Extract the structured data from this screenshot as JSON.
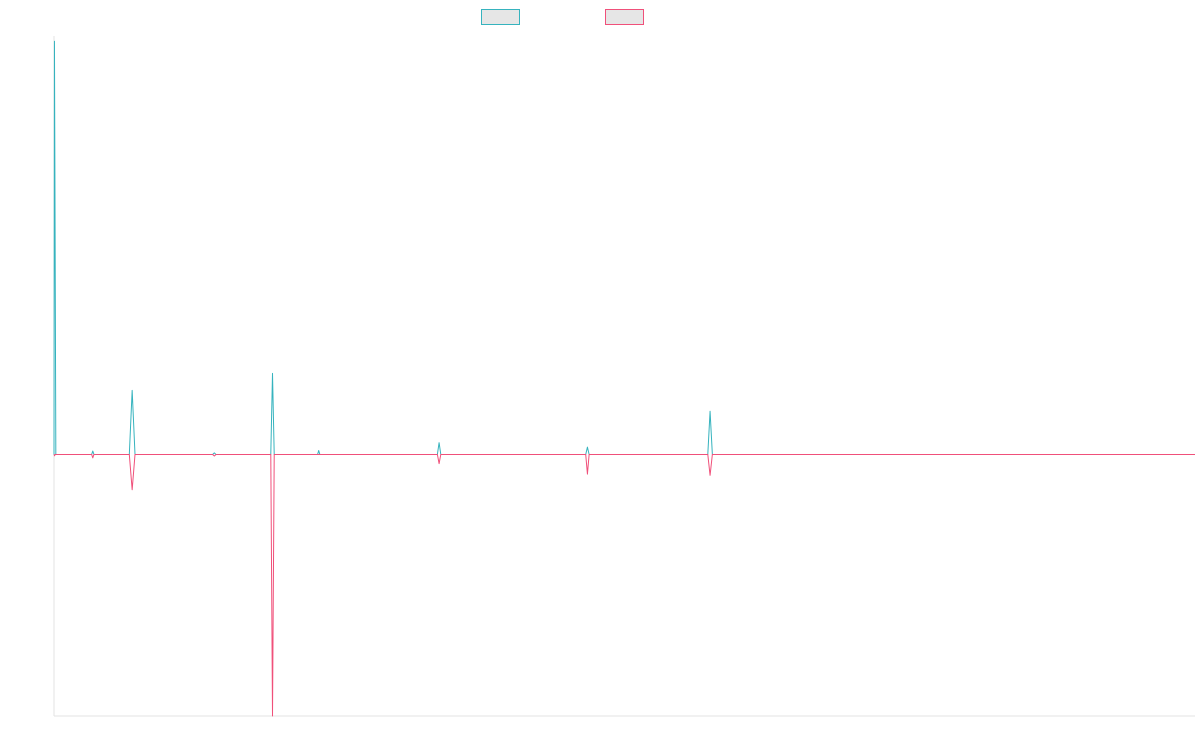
{
  "chart_data": {
    "type": "line",
    "title": "",
    "xlabel": "",
    "ylabel": "",
    "x_domain": [
      0,
      1000
    ],
    "ylim": [
      -100,
      160
    ],
    "grid": false,
    "legend_position": "top",
    "series": [
      {
        "color": "#36b3be",
        "fill": "#e6e6e6",
        "points": [
          [
            0,
            0
          ],
          [
            0.4,
            158
          ],
          [
            1.6,
            0
          ],
          [
            33,
            0
          ],
          [
            34,
            1.3
          ],
          [
            35,
            0
          ],
          [
            66,
            0
          ],
          [
            68.5,
            24.5
          ],
          [
            71,
            0
          ],
          [
            139,
            0
          ],
          [
            140.5,
            0.6
          ],
          [
            142,
            0
          ],
          [
            190,
            0
          ],
          [
            191.5,
            31
          ],
          [
            193,
            0
          ],
          [
            231,
            0
          ],
          [
            232,
            1.5
          ],
          [
            233,
            0
          ],
          [
            336,
            0
          ],
          [
            337.5,
            4.5
          ],
          [
            339,
            0
          ],
          [
            466,
            0
          ],
          [
            467.5,
            2.8
          ],
          [
            469,
            0
          ],
          [
            573,
            0
          ],
          [
            575,
            16.5
          ],
          [
            577,
            0
          ],
          [
            1000,
            0
          ]
        ]
      },
      {
        "color": "#f0507a",
        "fill": "#e6e6e6",
        "points": [
          [
            0,
            0
          ],
          [
            0.5,
            -0.5
          ],
          [
            1,
            0
          ],
          [
            33,
            0
          ],
          [
            34,
            -1.3
          ],
          [
            35,
            0
          ],
          [
            66,
            0
          ],
          [
            68.5,
            -13.5
          ],
          [
            71,
            0
          ],
          [
            139,
            0
          ],
          [
            140.5,
            -0.6
          ],
          [
            142,
            0
          ],
          [
            190,
            0
          ],
          [
            191.5,
            -100
          ],
          [
            193,
            0
          ],
          [
            336,
            0
          ],
          [
            337.5,
            -3.5
          ],
          [
            339,
            0
          ],
          [
            466,
            0
          ],
          [
            467.5,
            -7.5
          ],
          [
            469,
            0
          ],
          [
            573,
            0
          ],
          [
            575,
            -8
          ],
          [
            577,
            0
          ],
          [
            1000,
            0
          ]
        ]
      }
    ]
  },
  "legend": [
    {
      "label": "",
      "color": "#36b3be",
      "fill": "#e6e6e6"
    },
    {
      "label": "",
      "color": "#f0507a",
      "fill": "#e6e6e6"
    }
  ],
  "colors": {
    "axis": "#e3e3e3",
    "background": "#ffffff"
  }
}
